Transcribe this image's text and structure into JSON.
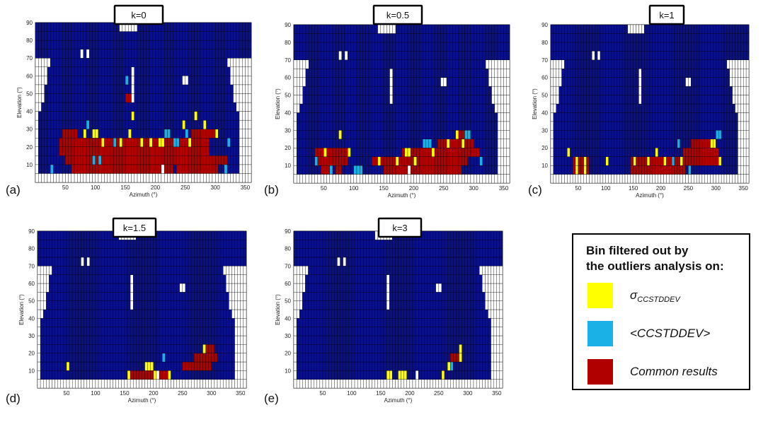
{
  "colors": {
    "blue": "#0a0f8a",
    "white": "#ffffff",
    "grid": "#000000",
    "yellow": "#ffff00",
    "cyan": "#1ab2e6",
    "red": "#b00000"
  },
  "legend": {
    "title_line1": "Bin filtered out by",
    "title_line2": "the outliers analysis on:",
    "items": [
      {
        "symbol": "σ",
        "subscript": "CCSTDDEV",
        "label": "",
        "color": "#ffff00"
      },
      {
        "symbol": "",
        "subscript": "",
        "label": "<CCSTDDEV>",
        "color": "#1ab2e6"
      },
      {
        "symbol": "",
        "subscript": "",
        "label": "Common results",
        "color": "#b00000"
      }
    ]
  },
  "chart_data": [
    {
      "type": "heatmap",
      "panel": "(a)",
      "title": "k=0",
      "xlabel": "Azimuth (°)",
      "ylabel": "Elevation (°)",
      "xlim": [
        0,
        360
      ],
      "ylim": [
        0,
        90
      ],
      "xticks": [
        "50",
        "100",
        "150",
        "200",
        "250",
        "300",
        "350"
      ],
      "yticks": [
        "10",
        "20",
        "30",
        "40",
        "50",
        "60",
        "70",
        "80",
        "90"
      ],
      "red": [
        [
          40,
          290,
          15,
          25
        ],
        [
          45,
          70,
          25,
          30
        ],
        [
          50,
          320,
          10,
          15
        ],
        [
          60,
          230,
          5,
          10
        ],
        [
          235,
          305,
          5,
          10
        ],
        [
          260,
          300,
          25,
          30
        ],
        [
          150,
          160,
          45,
          50
        ],
        [
          156,
          162,
          50,
          55
        ]
      ],
      "yellow": [
        [
          80,
          85,
          25,
          30
        ],
        [
          95,
          105,
          25,
          30
        ],
        [
          110,
          115,
          20,
          25
        ],
        [
          140,
          145,
          20,
          25
        ],
        [
          155,
          160,
          25,
          30
        ],
        [
          160,
          165,
          35,
          40
        ],
        [
          175,
          180,
          20,
          25
        ],
        [
          190,
          195,
          20,
          25
        ],
        [
          205,
          215,
          20,
          25
        ],
        [
          245,
          250,
          30,
          35
        ],
        [
          255,
          260,
          20,
          25
        ],
        [
          265,
          270,
          35,
          40
        ],
        [
          280,
          285,
          30,
          35
        ],
        [
          300,
          305,
          25,
          30
        ]
      ],
      "cyan": [
        [
          25,
          30,
          5,
          10
        ],
        [
          85,
          90,
          30,
          35
        ],
        [
          95,
          100,
          10,
          15
        ],
        [
          105,
          110,
          10,
          15
        ],
        [
          150,
          155,
          55,
          60
        ],
        [
          130,
          135,
          20,
          25
        ],
        [
          215,
          225,
          25,
          30
        ],
        [
          230,
          240,
          20,
          25
        ],
        [
          250,
          255,
          25,
          30
        ],
        [
          315,
          320,
          5,
          10
        ],
        [
          320,
          325,
          20,
          25
        ]
      ],
      "whiteBins": [
        [
          210,
          215,
          5,
          10
        ]
      ]
    },
    {
      "type": "heatmap",
      "panel": "(b)",
      "title": "k=0.5",
      "xlabel": "Azimuth (°)",
      "ylabel": "Elevation (°)",
      "xlim": [
        0,
        360
      ],
      "ylim": [
        0,
        90
      ],
      "xticks": [
        "50",
        "100",
        "150",
        "200",
        "250",
        "300",
        "350"
      ],
      "yticks": [
        "10",
        "20",
        "30",
        "40",
        "50",
        "60",
        "70",
        "80",
        "90"
      ],
      "red": [
        [
          35,
          90,
          10,
          20
        ],
        [
          45,
          60,
          5,
          10
        ],
        [
          70,
          80,
          5,
          10
        ],
        [
          130,
          290,
          10,
          15
        ],
        [
          150,
          280,
          5,
          10
        ],
        [
          180,
          310,
          15,
          20
        ],
        [
          240,
          300,
          20,
          25
        ],
        [
          270,
          295,
          25,
          30
        ],
        [
          158,
          162,
          45,
          50
        ]
      ],
      "yellow": [
        [
          75,
          80,
          25,
          30
        ],
        [
          50,
          55,
          15,
          20
        ],
        [
          90,
          95,
          15,
          20
        ],
        [
          140,
          145,
          10,
          15
        ],
        [
          170,
          175,
          10,
          15
        ],
        [
          185,
          195,
          15,
          20
        ],
        [
          200,
          205,
          10,
          15
        ],
        [
          230,
          235,
          15,
          20
        ],
        [
          255,
          260,
          20,
          25
        ],
        [
          270,
          275,
          25,
          30
        ],
        [
          280,
          285,
          20,
          25
        ]
      ],
      "cyan": [
        [
          35,
          40,
          10,
          15
        ],
        [
          60,
          65,
          5,
          10
        ],
        [
          100,
          115,
          5,
          10
        ],
        [
          215,
          230,
          20,
          25
        ],
        [
          285,
          295,
          25,
          30
        ],
        [
          310,
          315,
          10,
          15
        ]
      ],
      "whiteBins": [
        [
          190,
          195,
          5,
          10
        ]
      ]
    },
    {
      "type": "heatmap",
      "panel": "(c)",
      "title": "k=1",
      "xlabel": "Azimuth (°)",
      "ylabel": "Elevation (°)",
      "xlim": [
        0,
        360
      ],
      "ylim": [
        0,
        90
      ],
      "xticks": [
        "50",
        "100",
        "150",
        "200",
        "250",
        "300",
        "350"
      ],
      "yticks": [
        "10",
        "20",
        "30",
        "40",
        "50",
        "60",
        "70",
        "80",
        "90"
      ],
      "red": [
        [
          40,
          70,
          5,
          15
        ],
        [
          145,
          245,
          5,
          15
        ],
        [
          240,
          305,
          10,
          20
        ],
        [
          255,
          300,
          20,
          25
        ]
      ],
      "yellow": [
        [
          30,
          35,
          15,
          20
        ],
        [
          45,
          50,
          5,
          15
        ],
        [
          60,
          65,
          5,
          15
        ],
        [
          100,
          105,
          10,
          15
        ],
        [
          150,
          155,
          10,
          15
        ],
        [
          175,
          180,
          10,
          15
        ],
        [
          190,
          195,
          15,
          20
        ],
        [
          205,
          210,
          10,
          15
        ],
        [
          235,
          240,
          10,
          15
        ],
        [
          290,
          300,
          20,
          25
        ],
        [
          305,
          310,
          10,
          15
        ]
      ],
      "cyan": [
        [
          220,
          225,
          10,
          15
        ],
        [
          230,
          235,
          20,
          25
        ],
        [
          250,
          255,
          5,
          10
        ],
        [
          300,
          310,
          25,
          30
        ]
      ],
      "whiteBins": []
    },
    {
      "type": "heatmap",
      "panel": "(d)",
      "title": "k=1.5",
      "xlabel": "Azimuth (°)",
      "ylabel": "Elevation (°)",
      "xlim": [
        0,
        360
      ],
      "ylim": [
        0,
        90
      ],
      "xticks": [
        "50",
        "100",
        "150",
        "200",
        "250",
        "300",
        "350"
      ],
      "yticks": [
        "10",
        "20",
        "30",
        "40",
        "50",
        "60",
        "70",
        "80",
        "90"
      ],
      "red": [
        [
          160,
          230,
          5,
          10
        ],
        [
          250,
          300,
          10,
          15
        ],
        [
          270,
          310,
          15,
          20
        ],
        [
          285,
          305,
          20,
          25
        ]
      ],
      "yellow": [
        [
          50,
          55,
          10,
          15
        ],
        [
          155,
          160,
          5,
          10
        ],
        [
          185,
          200,
          10,
          15
        ],
        [
          200,
          205,
          5,
          10
        ],
        [
          225,
          230,
          5,
          10
        ],
        [
          285,
          290,
          20,
          25
        ]
      ],
      "cyan": [
        [
          215,
          220,
          15,
          20
        ]
      ],
      "whiteBins": [
        [
          205,
          210,
          5,
          10
        ]
      ]
    },
    {
      "type": "heatmap",
      "panel": "(e)",
      "title": "k=3",
      "xlabel": "Azimuth (°)",
      "ylabel": "Elevation (°)",
      "xlim": [
        0,
        360
      ],
      "ylim": [
        0,
        90
      ],
      "xticks": [
        "50",
        "100",
        "150",
        "200",
        "250",
        "300",
        "350"
      ],
      "yticks": [
        "10",
        "20",
        "30",
        "40",
        "50",
        "60",
        "70",
        "80",
        "90"
      ],
      "red": [
        [
          270,
          285,
          15,
          20
        ]
      ],
      "yellow": [
        [
          160,
          170,
          5,
          10
        ],
        [
          180,
          195,
          5,
          10
        ],
        [
          255,
          260,
          5,
          10
        ],
        [
          265,
          270,
          10,
          15
        ],
        [
          285,
          290,
          15,
          25
        ]
      ],
      "cyan": [
        [
          270,
          275,
          10,
          15
        ]
      ],
      "whiteBins": [
        [
          210,
          215,
          5,
          10
        ]
      ]
    }
  ]
}
